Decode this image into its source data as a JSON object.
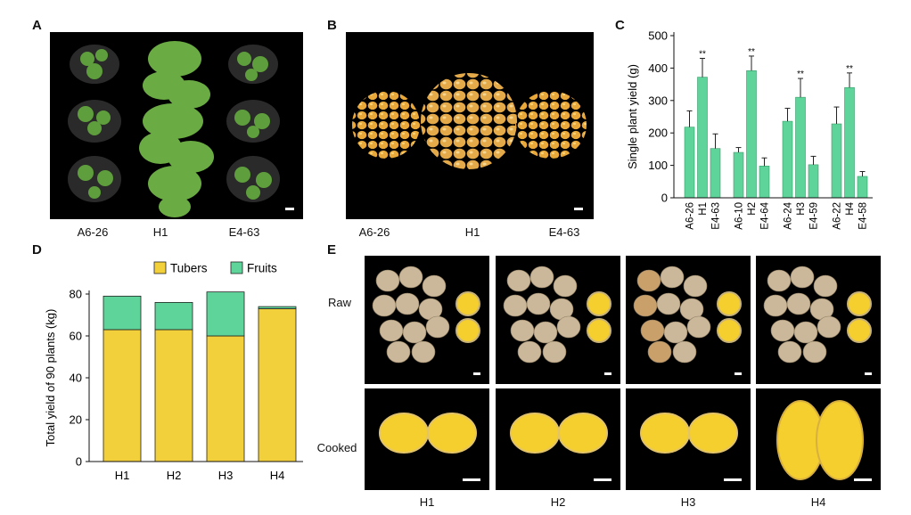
{
  "panels": {
    "A": {
      "letter": "A",
      "labels": [
        "A6-26",
        "H1",
        "E4-63"
      ]
    },
    "B": {
      "letter": "B",
      "labels": [
        "A6-26",
        "H1",
        "E4-63"
      ]
    },
    "C": {
      "letter": "C"
    },
    "D": {
      "letter": "D"
    },
    "E": {
      "letter": "E",
      "rows": [
        "Raw",
        "Cooked"
      ],
      "cols": [
        "H1",
        "H2",
        "H3",
        "H4"
      ]
    }
  },
  "colors": {
    "bar": "#5fd49a",
    "tubers": "#f2d03b",
    "fruits": "#5fd49a",
    "tuber_flesh": "#f4cf2e",
    "tuber_skin": "#cbb89a"
  },
  "chart_data": [
    {
      "panel": "C",
      "type": "bar",
      "title": "",
      "xlabel": "",
      "ylabel": "Single plant yield (g)",
      "ylim": [
        0,
        500
      ],
      "yticks": [
        0,
        100,
        200,
        300,
        400,
        500
      ],
      "groups": [
        {
          "categories": [
            "A6-26",
            "H1",
            "E4-63"
          ],
          "values": [
            218,
            372,
            152
          ],
          "errors": [
            50,
            58,
            45
          ],
          "sig": [
            "",
            "**",
            ""
          ]
        },
        {
          "categories": [
            "A6-10",
            "H2",
            "E4-64"
          ],
          "values": [
            140,
            392,
            98
          ],
          "errors": [
            15,
            45,
            25
          ],
          "sig": [
            "",
            "**",
            ""
          ]
        },
        {
          "categories": [
            "A6-24",
            "H3",
            "E4-59"
          ],
          "values": [
            236,
            310,
            102
          ],
          "errors": [
            40,
            58,
            26
          ],
          "sig": [
            "",
            "**",
            ""
          ]
        },
        {
          "categories": [
            "A6-22",
            "H4",
            "E4-58"
          ],
          "values": [
            228,
            340,
            66
          ],
          "errors": [
            52,
            45,
            15
          ],
          "sig": [
            "",
            "**",
            ""
          ]
        }
      ]
    },
    {
      "panel": "D",
      "type": "bar",
      "stacked": true,
      "title": "",
      "xlabel": "",
      "ylabel": "Total yield of 90 plants (kg)",
      "ylim": [
        0,
        80
      ],
      "yticks": [
        0,
        20,
        40,
        60,
        80
      ],
      "categories": [
        "H1",
        "H2",
        "H3",
        "H4"
      ],
      "series": [
        {
          "name": "Tubers",
          "values": [
            63,
            63,
            60,
            73
          ]
        },
        {
          "name": "Fruits",
          "values": [
            16,
            13,
            21,
            1
          ]
        }
      ],
      "legend": "top"
    }
  ]
}
